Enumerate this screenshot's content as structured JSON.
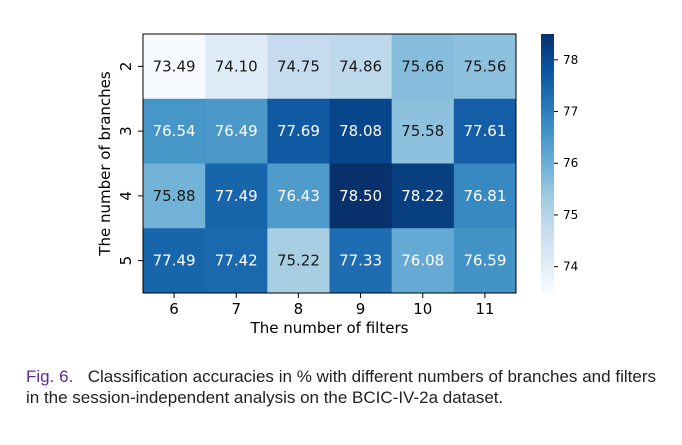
{
  "chart_data": {
    "type": "heatmap",
    "x_categories": [
      "6",
      "7",
      "8",
      "9",
      "10",
      "11"
    ],
    "y_categories": [
      "2",
      "3",
      "4",
      "5"
    ],
    "values": [
      [
        73.49,
        74.1,
        74.75,
        74.86,
        75.66,
        75.56
      ],
      [
        76.54,
        76.49,
        77.69,
        78.08,
        75.58,
        77.61
      ],
      [
        75.88,
        77.49,
        76.43,
        78.5,
        78.22,
        76.81
      ],
      [
        77.49,
        77.42,
        75.22,
        77.33,
        76.08,
        76.59
      ]
    ],
    "xlabel": "The number of filters",
    "ylabel": "The number of branches",
    "colorbar": {
      "ticks": [
        "74",
        "75",
        "76",
        "77",
        "78"
      ],
      "range": [
        73.49,
        78.5
      ],
      "colormap": "Blues"
    }
  },
  "caption": {
    "figure_label": "Fig. 6.",
    "text": "Classification accuracies in % with different numbers of branches and filters in the session-independent analysis on the BCIC-IV-2a dataset."
  }
}
